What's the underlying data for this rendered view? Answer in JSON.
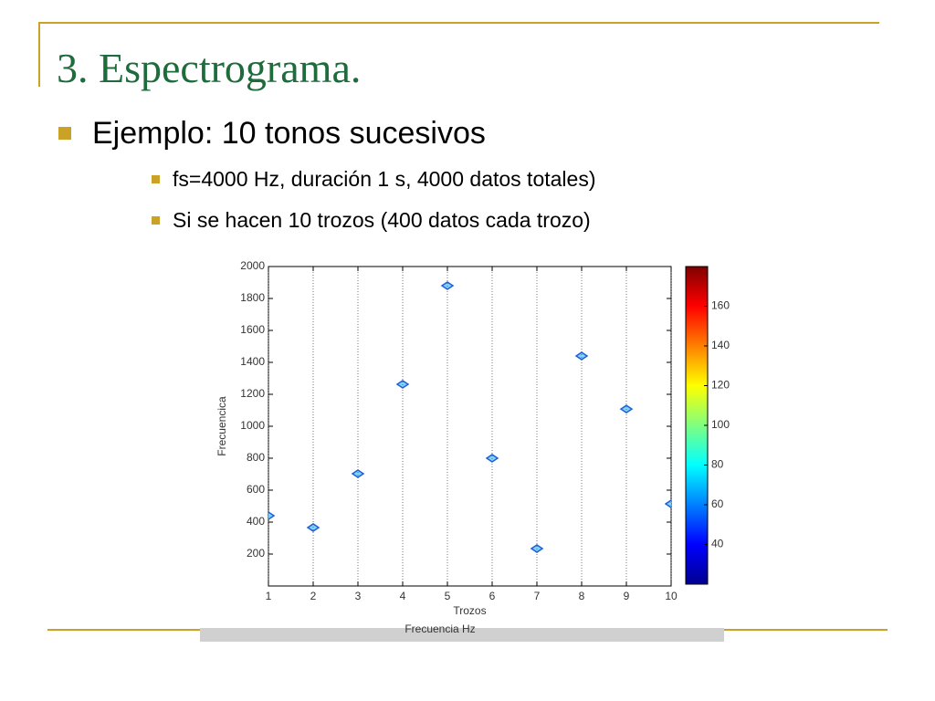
{
  "slide": {
    "title": "3. Espectrograma.",
    "bullet": "Ejemplo: 10 tonos sucesivos",
    "sub_bullets": [
      "fs=4000 Hz, duración 1 s, 4000 datos totales)",
      "Si se hacen 10 trozos (400 datos cada trozo)"
    ],
    "caption": "Frecuencia Hz"
  },
  "chart_data": {
    "type": "scatter",
    "xlabel": "Trozos",
    "ylabel": "Frecuencica",
    "x": [
      1,
      2,
      3,
      4,
      5,
      6,
      7,
      8,
      9,
      10
    ],
    "y": [
      440,
      366,
      703,
      1263,
      1880,
      800,
      234,
      1440,
      1108,
      514
    ],
    "color": "#1f5fd8",
    "xlim": [
      1,
      10
    ],
    "xticks": [
      1,
      2,
      3,
      4,
      5,
      6,
      7,
      8,
      9,
      10
    ],
    "ylim": [
      0,
      2000
    ],
    "yticks": [
      200,
      400,
      600,
      800,
      1000,
      1200,
      1400,
      1600,
      1800,
      2000
    ],
    "xgrid": true,
    "colorbar": {
      "lim": [
        20,
        180
      ],
      "ticks": [
        40,
        60,
        80,
        100,
        120,
        140,
        160
      ]
    }
  }
}
